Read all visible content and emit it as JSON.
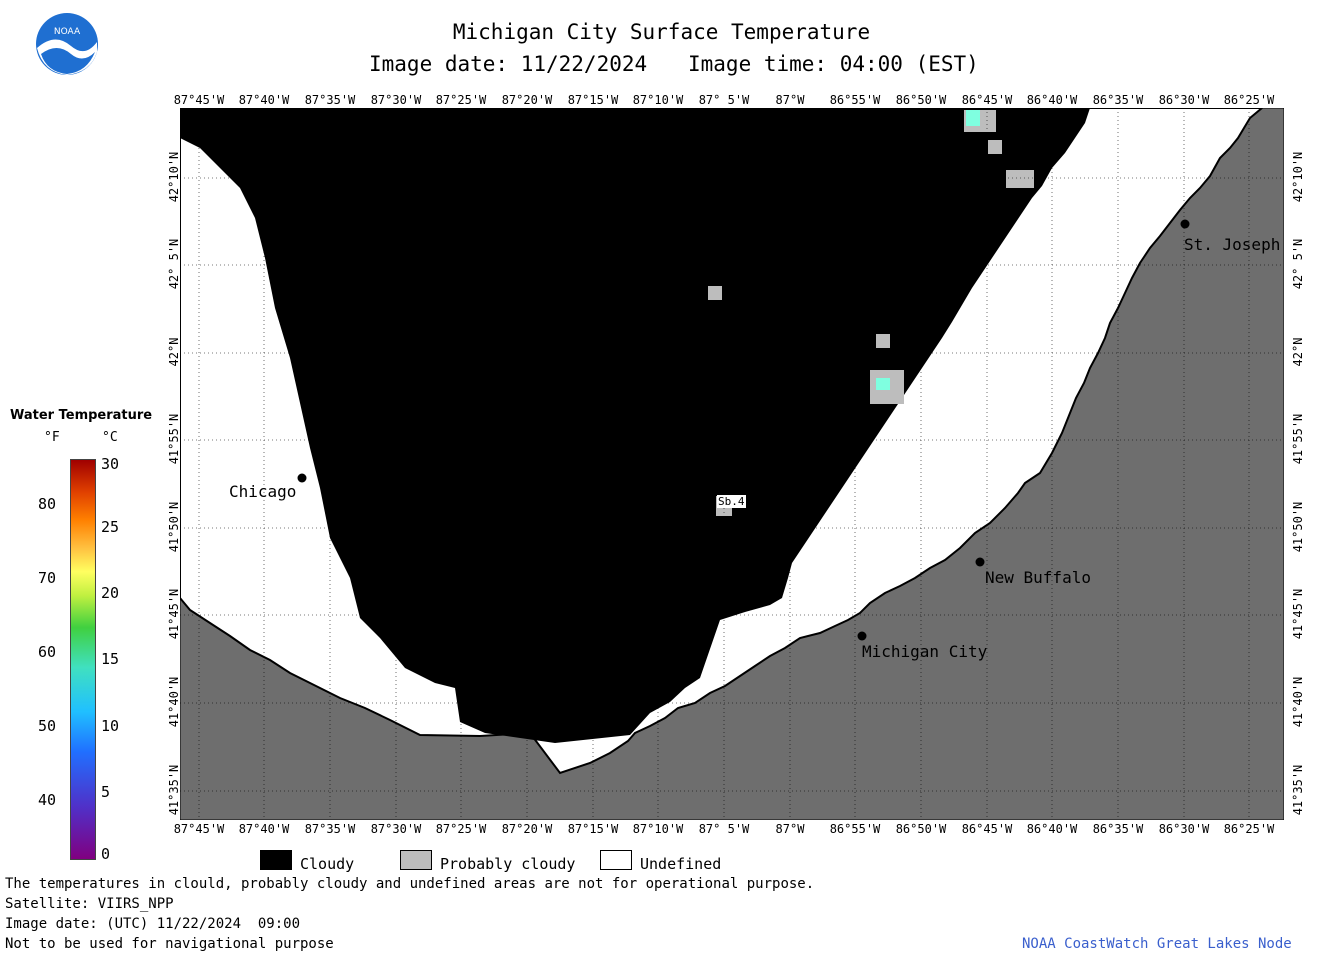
{
  "header": {
    "title": "Michigan City Surface Temperature",
    "date_label": "Image date: 11/22/2024",
    "time_label": "Image time: 04:00 (EST)",
    "logo_text": "NOAA"
  },
  "map": {
    "lon_labels": [
      "87°45'W",
      "87°40'W",
      "87°35'W",
      "87°30'W",
      "87°25'W",
      "87°20'W",
      "87°15'W",
      "87°10'W",
      "87° 5'W",
      "87°W",
      "86°55'W",
      "86°50'W",
      "86°45'W",
      "86°40'W",
      "86°35'W",
      "86°30'W",
      "86°25'W"
    ],
    "lat_labels": [
      "42°10'N",
      "42° 5'N",
      "42°N",
      "41°55'N",
      "41°50'N",
      "41°45'N",
      "41°40'N",
      "41°35'N"
    ],
    "cities": [
      {
        "name": "Chicago"
      },
      {
        "name": "St. Joseph"
      },
      {
        "name": "New Buffalo"
      },
      {
        "name": "Michigan City"
      }
    ],
    "station_label": "Sb.4",
    "colors": {
      "land": "#6e6e6e",
      "cloud": "#000000",
      "probably_cloudy": "#bdbdbd",
      "undefined": "#ffffff",
      "water_warm": "#7fffe0"
    }
  },
  "legend": {
    "title": "Water Temperature",
    "unit_f": "°F",
    "unit_c": "°C",
    "f_ticks": [
      "80",
      "70",
      "60",
      "50",
      "40"
    ],
    "c_ticks": [
      "30",
      "25",
      "20",
      "15",
      "10",
      "5",
      "0"
    ]
  },
  "key": {
    "cloudy": "Cloudy",
    "probably_cloudy": "Probably cloudy",
    "undefined": "Undefined"
  },
  "footer": {
    "disclaimer": "The temperatures in clould, probably cloudy and undefined areas are not for operational purpose.",
    "satellite": "Satellite: VIIRS_NPP",
    "utc_date": "Image date: (UTC) 11/22/2024  09:00",
    "nav_warning": "Not to be used for navigational purpose",
    "credit": "NOAA CoastWatch Great Lakes Node",
    "credit_color": "#3a5fcd"
  }
}
